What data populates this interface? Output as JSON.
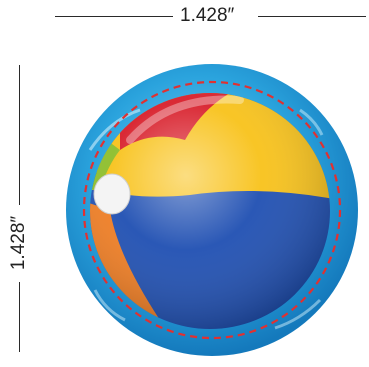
{
  "dimensions": {
    "width_label": "1.428″",
    "height_label": "1.428″"
  },
  "colors": {
    "ring_blue": "#1E96D6",
    "ring_light": "#6CC4EE",
    "cut_line": "#E03131",
    "dimension_line": "#2A2A2A",
    "ball_red": "#D81E2A",
    "ball_yellow": "#F8C21A",
    "ball_blue": "#1F4FB2",
    "ball_orange": "#F07D22",
    "ball_green": "#8DBE2A",
    "ball_white": "#F4F4F4"
  },
  "artwork": {
    "subject": "beach-ball",
    "cut_line_style": "dashed"
  }
}
